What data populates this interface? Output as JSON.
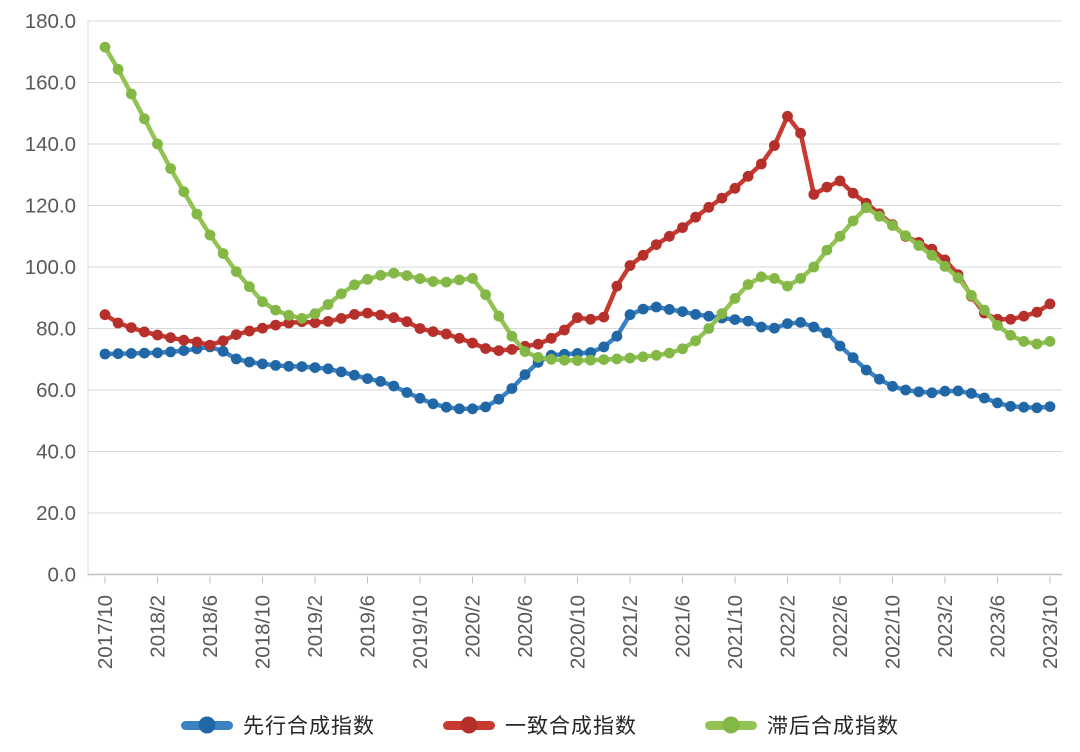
{
  "chart_data": {
    "type": "line",
    "title": "",
    "grid": true,
    "legend_position": "bottom",
    "background": "#ffffff",
    "grid_color": "#d9d9d9",
    "axis_line_color": "#bfbfbf",
    "tick_label_color": "#595959",
    "y_axis": {
      "min": 0,
      "max": 180,
      "step": 20,
      "tick_labels": [
        "180.0",
        "160.0",
        "140.0",
        "120.0",
        "100.0",
        "80.0",
        "60.0",
        "40.0",
        "20.0",
        "0.0"
      ]
    },
    "x_tick_labels": [
      "2017/10",
      "2018/2",
      "2018/6",
      "2018/10",
      "2019/2",
      "2019/6",
      "2019/10",
      "2020/2",
      "2020/6",
      "2020/10",
      "2021/2",
      "2021/6",
      "2021/10",
      "2022/2",
      "2022/6",
      "2022/10",
      "2023/2",
      "2023/6",
      "2023/10"
    ],
    "x_months": [
      "2017/10",
      "2017/11",
      "2017/12",
      "2018/1",
      "2018/2",
      "2018/3",
      "2018/4",
      "2018/5",
      "2018/6",
      "2018/7",
      "2018/8",
      "2018/9",
      "2018/10",
      "2018/11",
      "2018/12",
      "2019/1",
      "2019/2",
      "2019/3",
      "2019/4",
      "2019/5",
      "2019/6",
      "2019/7",
      "2019/8",
      "2019/9",
      "2019/10",
      "2019/11",
      "2019/12",
      "2020/1",
      "2020/2",
      "2020/3",
      "2020/4",
      "2020/5",
      "2020/6",
      "2020/7",
      "2020/8",
      "2020/9",
      "2020/10",
      "2020/11",
      "2020/12",
      "2021/1",
      "2021/2",
      "2021/3",
      "2021/4",
      "2021/5",
      "2021/6",
      "2021/7",
      "2021/8",
      "2021/9",
      "2021/10",
      "2021/11",
      "2021/12",
      "2022/1",
      "2022/2",
      "2022/3",
      "2022/4",
      "2022/5",
      "2022/6",
      "2022/7",
      "2022/8",
      "2022/9",
      "2022/10",
      "2022/11",
      "2022/12",
      "2023/1",
      "2023/2",
      "2023/3",
      "2023/4",
      "2023/5",
      "2023/6",
      "2023/7",
      "2023/8",
      "2023/9",
      "2023/10"
    ],
    "series": [
      {
        "name": "先行合成指数",
        "color": "#3b82c4",
        "marker_color": "#2166a5",
        "values": [
          71.7,
          71.8,
          71.9,
          72.0,
          72.1,
          72.4,
          72.8,
          73.4,
          74.0,
          72.6,
          70.1,
          69.1,
          68.5,
          68.0,
          67.7,
          67.6,
          67.3,
          66.9,
          65.9,
          64.8,
          63.7,
          62.8,
          61.3,
          59.2,
          57.3,
          55.5,
          54.4,
          53.9,
          53.9,
          54.5,
          57.0,
          60.5,
          65.0,
          69.0,
          71.3,
          71.6,
          71.9,
          72.2,
          74.0,
          77.5,
          84.5,
          86.3,
          87.0,
          86.2,
          85.5,
          84.6,
          84.0,
          83.4,
          82.9,
          82.4,
          80.5,
          80.1,
          81.6,
          82.0,
          80.5,
          78.6,
          74.3,
          70.5,
          66.5,
          63.5,
          61.2,
          60.0,
          59.4,
          59.1,
          59.6,
          59.7,
          58.9,
          57.4,
          55.8,
          54.7,
          54.4,
          54.2,
          54.6
        ]
      },
      {
        "name": "一致合成指数",
        "color": "#c8392f",
        "marker_color": "#b5302a",
        "values": [
          84.5,
          81.8,
          80.3,
          78.9,
          77.9,
          77.0,
          76.2,
          75.6,
          74.6,
          76.0,
          78.0,
          79.2,
          80.1,
          81.1,
          81.8,
          82.2,
          81.9,
          82.3,
          83.3,
          84.6,
          85.0,
          84.4,
          83.5,
          82.2,
          80.0,
          79.0,
          78.2,
          76.8,
          75.3,
          73.5,
          72.8,
          73.2,
          74.2,
          74.9,
          76.8,
          79.5,
          83.5,
          83.0,
          83.7,
          93.8,
          100.5,
          103.8,
          107.3,
          110.0,
          112.8,
          116.2,
          119.4,
          122.4,
          125.6,
          129.5,
          133.5,
          139.5,
          149.0,
          143.5,
          123.6,
          126.0,
          128.0,
          124.0,
          120.7,
          117.3,
          113.8,
          110.0,
          108.0,
          105.8,
          102.3,
          97.5,
          90.5,
          85.0,
          83.0,
          83.0,
          84.0,
          85.3,
          88.0
        ]
      },
      {
        "name": "滞后合成指数",
        "color": "#92c353",
        "marker_color": "#84b846",
        "values": [
          171.5,
          164.3,
          156.3,
          148.2,
          140.0,
          132.0,
          124.5,
          117.2,
          110.4,
          104.4,
          98.5,
          93.6,
          88.7,
          86.0,
          84.3,
          83.3,
          84.8,
          87.8,
          91.3,
          94.2,
          96.0,
          97.3,
          98.0,
          97.2,
          96.2,
          95.3,
          95.1,
          95.8,
          96.3,
          91.0,
          84.0,
          77.5,
          72.5,
          70.6,
          70.0,
          69.7,
          69.6,
          69.7,
          69.9,
          70.1,
          70.4,
          70.8,
          71.3,
          72.0,
          73.4,
          76.0,
          80.0,
          84.8,
          89.8,
          94.3,
          96.8,
          96.3,
          93.8,
          96.3,
          100.0,
          105.5,
          110.0,
          115.0,
          119.3,
          116.5,
          113.5,
          110.2,
          107.0,
          103.8,
          100.2,
          96.5,
          90.8,
          86.0,
          81.0,
          77.8,
          75.8,
          75.0,
          75.8
        ]
      }
    ]
  }
}
